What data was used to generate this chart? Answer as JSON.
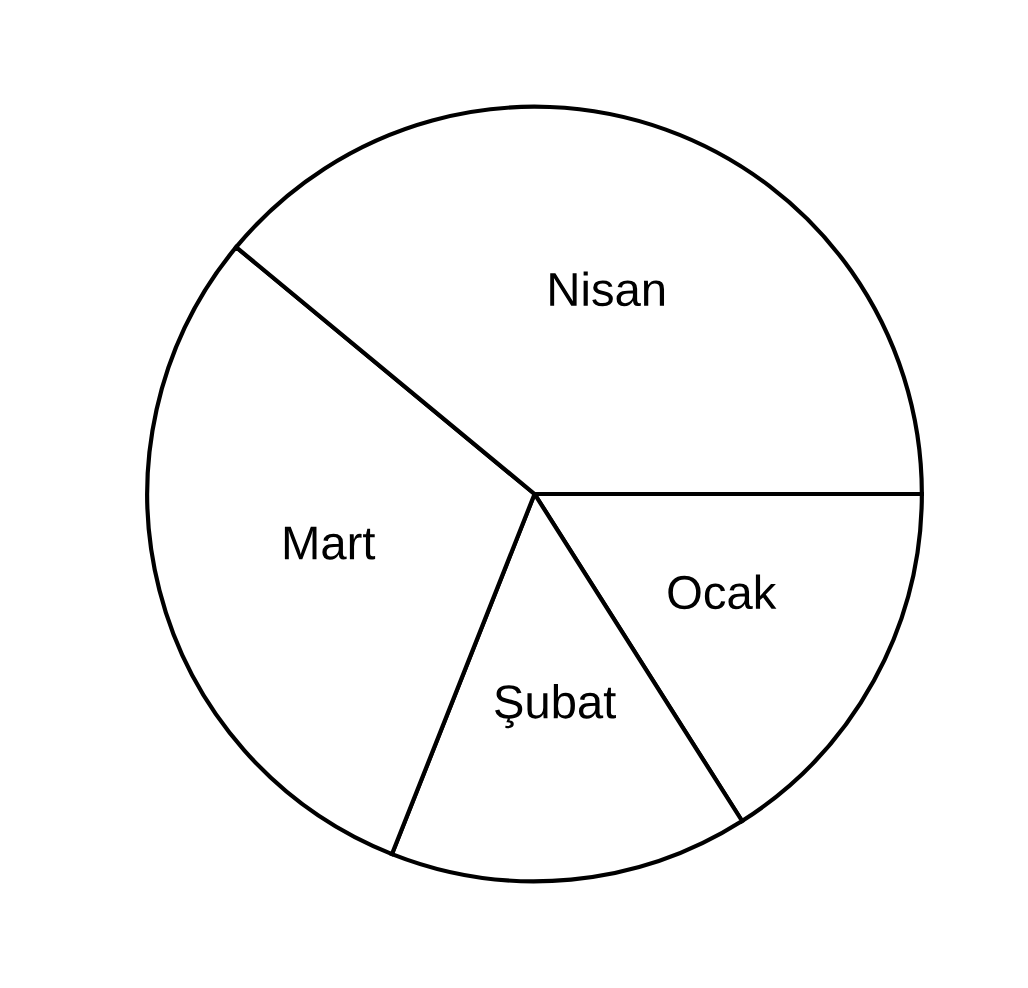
{
  "chart_data": {
    "type": "pie",
    "categories": [
      "Ocak",
      "Şubat",
      "Mart",
      "Nisan"
    ],
    "values": [
      16,
      15,
      30,
      39
    ],
    "colors": [
      "#ffffff",
      "#ffffff",
      "#ffffff",
      "#ffffff"
    ]
  }
}
